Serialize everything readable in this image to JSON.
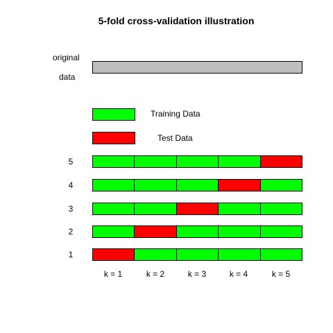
{
  "title": "5-fold cross-validation illustration",
  "original_label_line1": "original",
  "original_label_line2": "data",
  "legend": {
    "training_label": "Training Data",
    "test_label": "Test Data"
  },
  "colors": {
    "training": "#00ff00",
    "test": "#ff0000",
    "original": "#bebebe",
    "border": "#000000"
  },
  "rows": [
    {
      "label": "5",
      "test_fold": 5
    },
    {
      "label": "4",
      "test_fold": 4
    },
    {
      "label": "3",
      "test_fold": 3
    },
    {
      "label": "2",
      "test_fold": 2
    },
    {
      "label": "1",
      "test_fold": 1
    }
  ],
  "k_labels": [
    "k = 1",
    "k = 2",
    "k = 3",
    "k = 4",
    "k = 5"
  ]
}
